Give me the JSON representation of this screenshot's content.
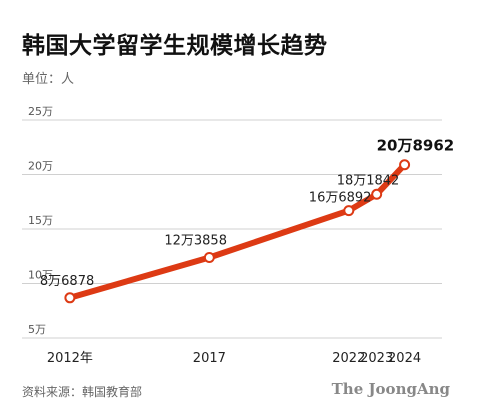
{
  "header": {
    "title": "韩国大学留学生规模增长趋势",
    "unit": "单位：人"
  },
  "footer": {
    "source": "资料来源：韩国教育部",
    "brand": "The JoongAng"
  },
  "colors": {
    "line": "#dd3a14",
    "grid": "#d0d0d0",
    "marker_fill": "#ffffff"
  },
  "chart_data": {
    "type": "line",
    "title": "韩国大学留学生规模增长趋势",
    "ylabel": "单位：人",
    "ylim": [
      50000,
      250000
    ],
    "yticks": [
      {
        "value": 50000,
        "label": "5万"
      },
      {
        "value": 100000,
        "label": "10万"
      },
      {
        "value": 150000,
        "label": "15万"
      },
      {
        "value": 200000,
        "label": "20万"
      },
      {
        "value": 250000,
        "label": "25万"
      }
    ],
    "xticks": [
      "2012年",
      "2017",
      "2022",
      "2023",
      "2024"
    ],
    "x": [
      2012,
      2017,
      2022,
      2023,
      2024
    ],
    "values": [
      86878,
      123858,
      166892,
      181842,
      208962
    ],
    "data_labels": [
      "8万6878",
      "12万3858",
      "16万6892",
      "18万1842",
      "20万8962"
    ],
    "grid": true,
    "legend": "none"
  }
}
